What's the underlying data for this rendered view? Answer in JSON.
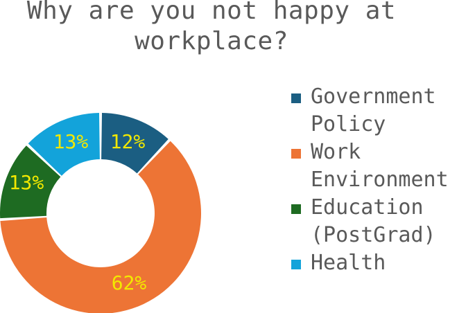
{
  "chart_data": {
    "type": "donut",
    "title": "Why are you not happy at workplace?",
    "categories": [
      "Government Policy",
      "Work Environment",
      "Education (PostGrad)",
      "Health"
    ],
    "legend_labels": [
      "Government\nPolicy",
      "Work\nEnvironment",
      "Education\n(PostGrad)",
      "Health"
    ],
    "values": [
      12,
      62,
      13,
      13
    ],
    "data_labels": [
      "12%",
      "62%",
      "13%",
      "13%"
    ],
    "colors": [
      "#1b5e82",
      "#ed7435",
      "#1e6b22",
      "#13a3da"
    ],
    "legend_position": "right"
  }
}
